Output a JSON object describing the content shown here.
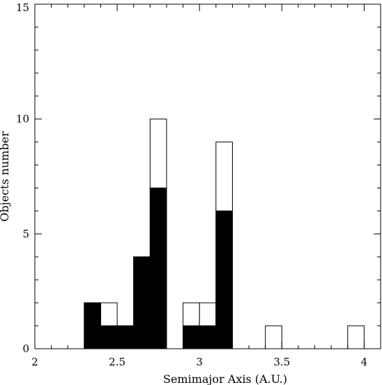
{
  "chart_data": {
    "type": "bar",
    "subtype": "histogram",
    "xlabel": "Semimajor Axis (A.U.)",
    "ylabel": "Objects number",
    "xlim": [
      2,
      4.1
    ],
    "ylim": [
      0,
      15
    ],
    "xticks": [
      {
        "value": 2,
        "label": "2"
      },
      {
        "value": 2.5,
        "label": "2.5"
      },
      {
        "value": 3,
        "label": "3"
      },
      {
        "value": 3.5,
        "label": "3.5"
      },
      {
        "value": 4,
        "label": "4"
      }
    ],
    "yticks": [
      {
        "value": 0,
        "label": "0"
      },
      {
        "value": 5,
        "label": "5"
      },
      {
        "value": 10,
        "label": "10"
      },
      {
        "value": 15,
        "label": "15"
      }
    ],
    "x_minor_step": 0.1,
    "y_minor_step": 1,
    "bin_width": 0.1,
    "bin_starts": [
      2.3,
      2.4,
      2.5,
      2.6,
      2.7,
      2.9,
      3.0,
      3.1,
      3.4,
      3.9
    ],
    "series": [
      {
        "fill": "#ffffff",
        "stroke": "#000000",
        "values": [
          2,
          2,
          1,
          4,
          10,
          2,
          2,
          9,
          1,
          1
        ]
      },
      {
        "fill": "#000000",
        "stroke": "#000000",
        "values": [
          2,
          1,
          1,
          4,
          7,
          1,
          1,
          6,
          0,
          0
        ]
      }
    ],
    "grid": false,
    "legend": "none"
  }
}
